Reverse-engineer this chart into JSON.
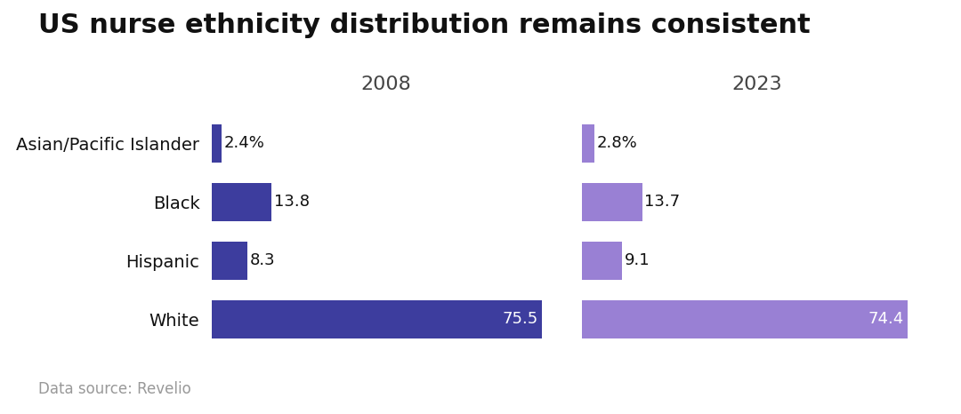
{
  "title": "US nurse ethnicity distribution remains consistent",
  "categories": [
    "Asian/Pacific Islander",
    "Black",
    "Hispanic",
    "White"
  ],
  "year_2008": [
    2.4,
    13.8,
    8.3,
    75.5
  ],
  "year_2023": [
    2.8,
    13.7,
    9.1,
    74.4
  ],
  "labels_2008": [
    "2.4%",
    "13.8",
    "8.3",
    "75.5"
  ],
  "labels_2023": [
    "2.8%",
    "13.7",
    "9.1",
    "74.4"
  ],
  "color_2008": "#3d3d9e",
  "color_2023": "#9980d4",
  "year_label_2008": "2008",
  "year_label_2023": "2023",
  "data_source": "Data source: Revelio",
  "bg_color": "#ffffff",
  "title_fontsize": 22,
  "label_fontsize": 13,
  "axis_fontsize": 14,
  "year_fontsize": 16,
  "source_fontsize": 12,
  "bar_height": 0.65,
  "max_val": 80
}
